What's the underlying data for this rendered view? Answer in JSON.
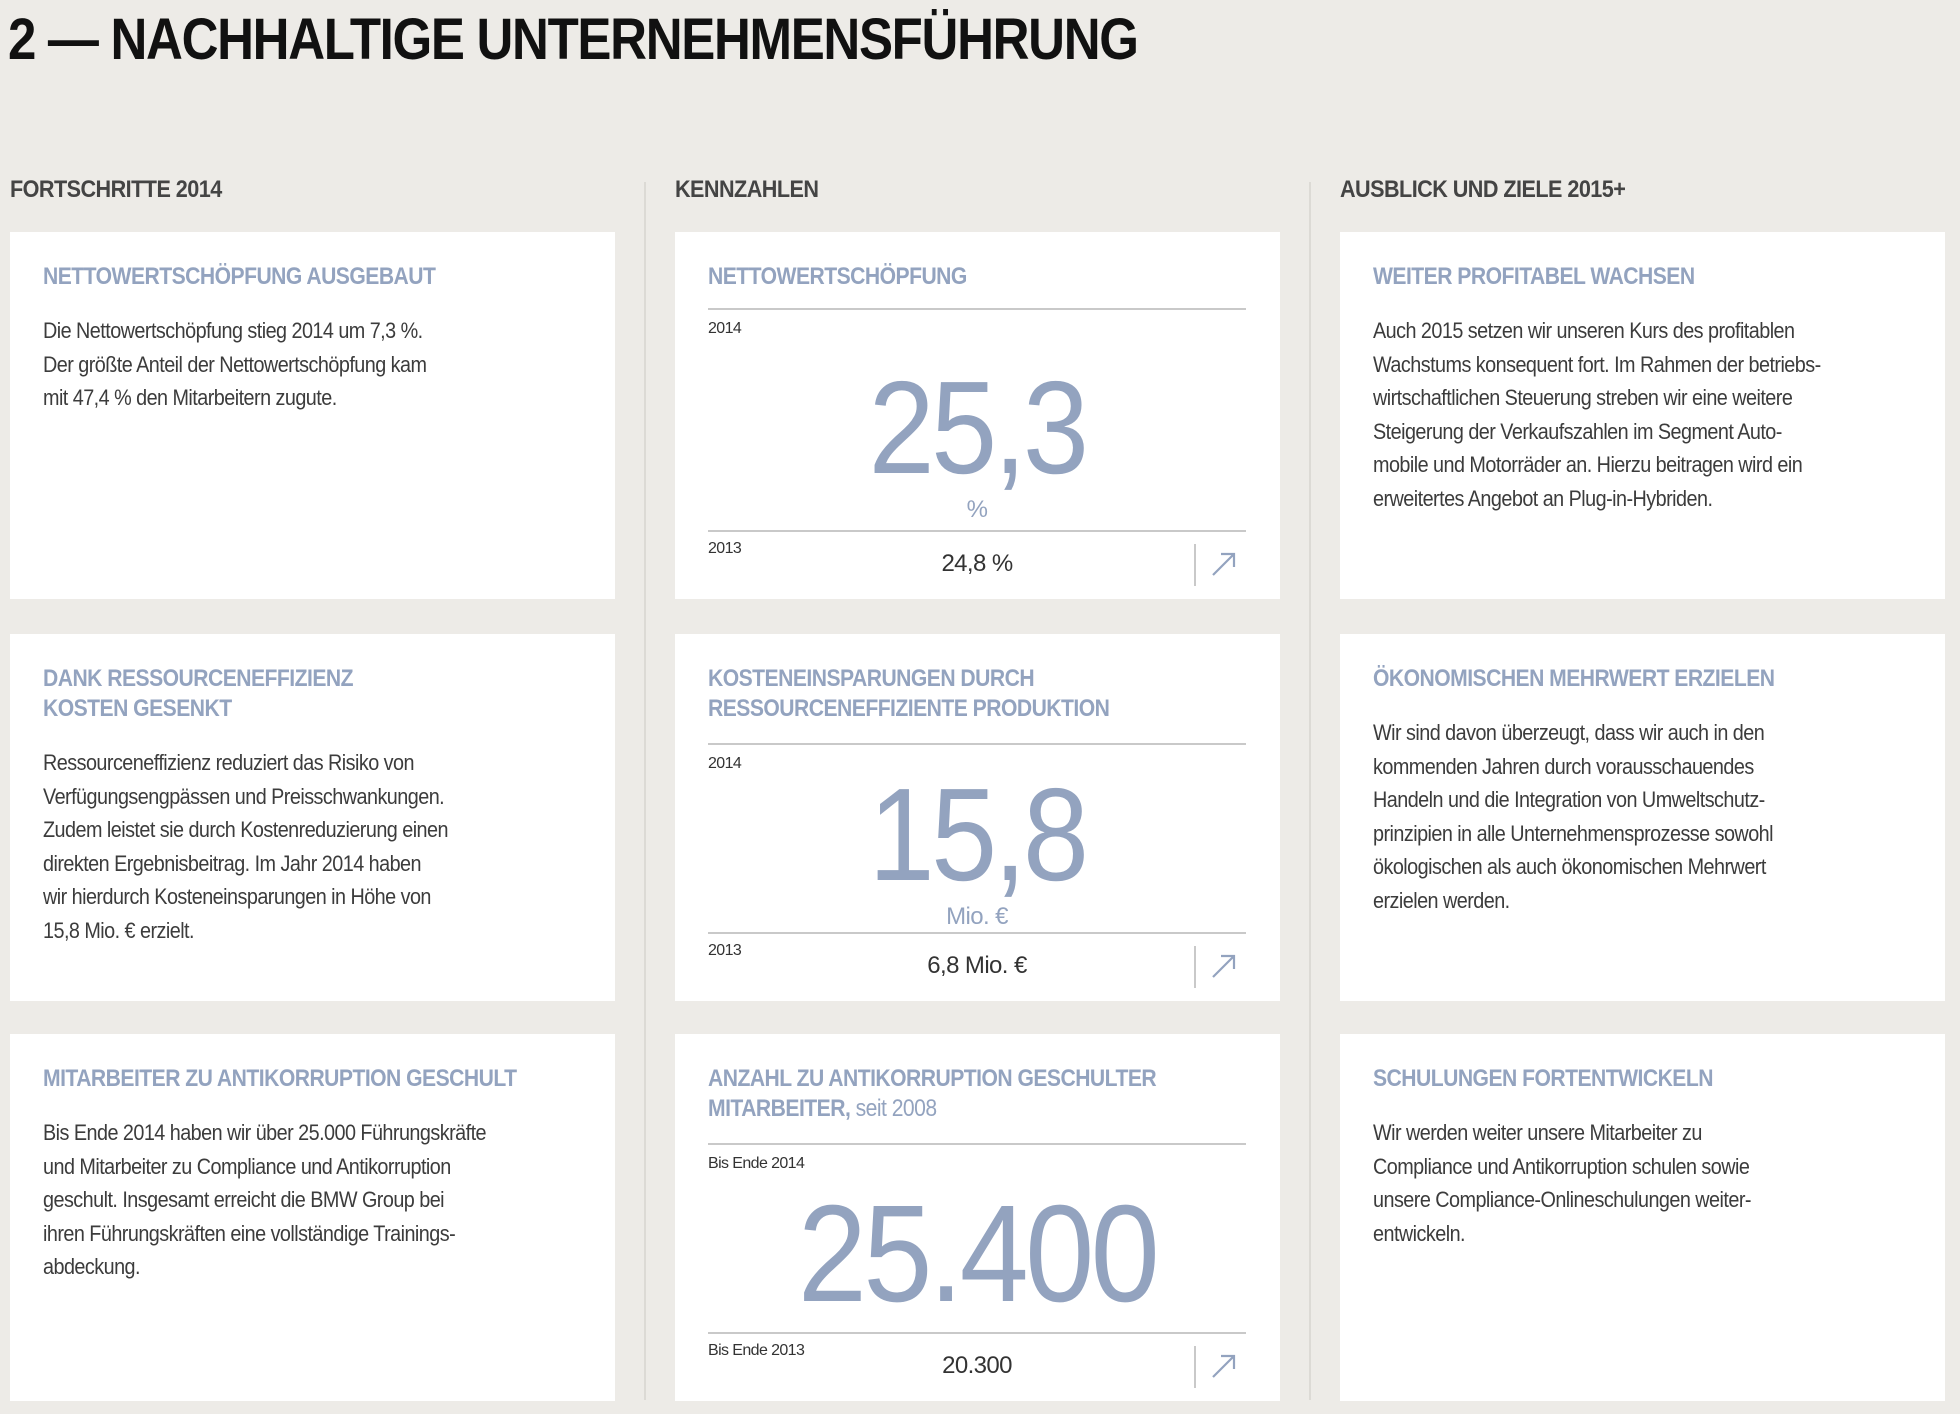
{
  "title": "2 — NACHHALTIGE UNTERNEHMENSFÜHRUNG",
  "columns": {
    "progress": "FORTSCHRITTE 2014",
    "kpis": "KENNZAHLEN",
    "outlook": "AUSBLICK UND ZIELE 2015+"
  },
  "accent_color": "#93a3bf",
  "progress": [
    {
      "heading": [
        "NETTOWERTSCHÖPFUNG AUSGEBAUT"
      ],
      "lines": [
        "Die Nettowertschöpfung stieg 2014 um 7,3 %.",
        "Der größte Anteil der Nettowertschöpfung kam",
        "mit 47,4 % den Mitarbeitern zugute."
      ]
    },
    {
      "heading": [
        "DANK RESSOURCENEFFIZIENZ",
        "KOSTEN GESENKT"
      ],
      "lines": [
        "Ressourceneffizienz reduziert das Risiko von",
        "Verfügungsengpässen und Preisschwankungen.",
        "Zudem leistet sie durch Kostenreduzierung einen",
        "direkten Ergebnisbeitrag. Im Jahr 2014 haben",
        "wir hierdurch Kosteneinsparungen in Höhe von",
        "15,8 Mio. € erzielt."
      ]
    },
    {
      "heading": [
        "MITARBEITER ZU ANTIKORRUPTION GESCHULT"
      ],
      "lines": [
        "Bis Ende 2014 haben wir über 25.000 Führungskräfte",
        "und Mitarbeiter zu Compliance und Antikorruption",
        "geschult. Insgesamt erreicht die BMW Group bei",
        "ihren Führungskräften eine vollständige Trainings-",
        "abdeckung."
      ]
    }
  ],
  "kpis": [
    {
      "heading": [
        "NETTOWERTSCHÖPFUNG"
      ],
      "heading_suffix": "",
      "current_label": "2014",
      "value": "25,3",
      "unit": "%",
      "prev_label": "2013",
      "prev_value": "24,8 %",
      "trend": "arrow-up-right-icon"
    },
    {
      "heading": [
        "KOSTENEINSPARUNGEN DURCH",
        "RESSOURCENEFFIZIENTE PRODUKTION"
      ],
      "heading_suffix": "",
      "current_label": "2014",
      "value": "15,8",
      "unit": "Mio. €",
      "prev_label": "2013",
      "prev_value": "6,8 Mio. €",
      "trend": "arrow-up-right-icon"
    },
    {
      "heading": [
        "ANZAHL ZU ANTIKORRUPTION GESCHULTER",
        "MITARBEITER,"
      ],
      "heading_suffix": " seit 2008",
      "current_label": "Bis Ende 2014",
      "value": "25.400",
      "unit": "",
      "prev_label": "Bis Ende 2013",
      "prev_value": "20.300",
      "trend": "arrow-up-right-icon"
    }
  ],
  "outlook": [
    {
      "heading": [
        "WEITER PROFITABEL WACHSEN"
      ],
      "lines": [
        "Auch 2015 setzen wir unseren Kurs des profitablen",
        "Wachstums konsequent fort. Im Rahmen der betriebs-",
        "wirtschaftlichen Steuerung streben wir eine weitere",
        "Steigerung der Verkaufszahlen im Segment Auto-",
        "mobile und Motorräder an. Hierzu beitragen wird ein",
        "erweitertes Angebot an Plug-in-Hybriden."
      ]
    },
    {
      "heading": [
        "ÖKONOMISCHEN MEHRWERT ERZIELEN"
      ],
      "lines": [
        "Wir sind davon überzeugt, dass wir auch in den",
        "kommenden Jahren durch vorausschauendes",
        "Handeln und die Integration von Umweltschutz-",
        "prinzipien in alle Unternehmensprozesse sowohl",
        "ökologischen als auch ökonomischen Mehrwert",
        "erzielen werden."
      ]
    },
    {
      "heading": [
        "SCHULUNGEN FORTENTWICKELN"
      ],
      "lines": [
        "Wir werden weiter unsere Mitarbeiter zu",
        "Compliance und Antikorruption schulen sowie",
        "unsere Compliance-Onlineschulungen weiter-",
        "entwickeln."
      ]
    }
  ]
}
